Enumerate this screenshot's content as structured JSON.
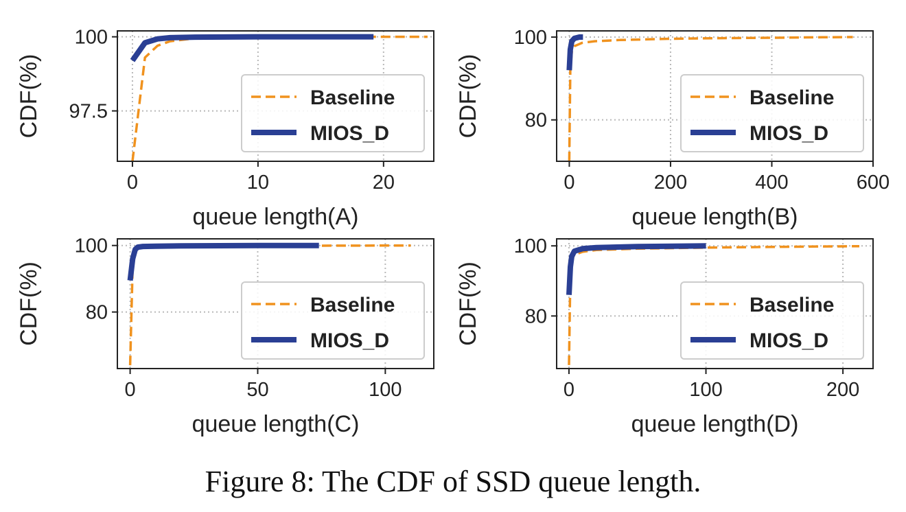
{
  "caption": "Figure 8: The CDF of SSD queue length.",
  "colors": {
    "baseline": "#f0921e",
    "mios_d": "#2a3f94",
    "grid": "#b8b8b8",
    "axis": "#222222"
  },
  "chart_data": [
    {
      "type": "line",
      "xlabel": "queue length(A)",
      "ylabel": "CDF(%)",
      "xlim": [
        -1.2,
        24
      ],
      "ylim": [
        95.8,
        100.2
      ],
      "xticks": [
        0,
        10,
        20
      ],
      "yticks": [
        97.5,
        100
      ],
      "ytick_labels": [
        "97.5",
        "100"
      ],
      "grid": true,
      "legend": "lower-right",
      "series": [
        {
          "name": "Baseline",
          "style": "dashed",
          "x": [
            0,
            1,
            2,
            3,
            5,
            10,
            15,
            20,
            23.5
          ],
          "y": [
            95.8,
            99.3,
            99.7,
            99.85,
            99.95,
            99.99,
            100,
            100,
            100
          ]
        },
        {
          "name": "MIOS_D",
          "style": "solid",
          "x": [
            0,
            1,
            2,
            3,
            5,
            10,
            15,
            19.2
          ],
          "y": [
            99.2,
            99.8,
            99.93,
            99.97,
            99.99,
            100,
            100,
            100
          ]
        }
      ]
    },
    {
      "type": "line",
      "xlabel": "queue length(B)",
      "ylabel": "CDF(%)",
      "xlim": [
        -25,
        600
      ],
      "ylim": [
        70,
        101.5
      ],
      "xticks": [
        0,
        200,
        400,
        600
      ],
      "yticks": [
        80,
        100
      ],
      "ytick_labels": [
        "80",
        "100"
      ],
      "grid": true,
      "legend": "lower-right",
      "series": [
        {
          "name": "Baseline",
          "style": "dashed",
          "x": [
            0,
            2,
            5,
            10,
            25,
            50,
            100,
            200,
            300,
            400,
            500,
            560
          ],
          "y": [
            70,
            92,
            96.5,
            97.8,
            98.6,
            99,
            99.3,
            99.6,
            99.75,
            99.85,
            99.95,
            100
          ]
        },
        {
          "name": "MIOS_D",
          "style": "solid",
          "x": [
            0,
            2,
            5,
            10,
            20,
            27
          ],
          "y": [
            92,
            97,
            99,
            99.7,
            100,
            100
          ]
        }
      ]
    },
    {
      "type": "line",
      "xlabel": "queue length(C)",
      "ylabel": "CDF(%)",
      "xlim": [
        -5,
        119
      ],
      "ylim": [
        63,
        102
      ],
      "xticks": [
        0,
        50,
        100
      ],
      "yticks": [
        80,
        100
      ],
      "ytick_labels": [
        "80",
        "100"
      ],
      "grid": true,
      "legend": "lower-right",
      "series": [
        {
          "name": "Baseline",
          "style": "dashed",
          "x": [
            0,
            1,
            2,
            3,
            5,
            10,
            20,
            50,
            80,
            110
          ],
          "y": [
            64,
            94,
            98.5,
            99.2,
            99.5,
            99.7,
            99.8,
            99.9,
            99.95,
            100
          ]
        },
        {
          "name": "MIOS_D",
          "style": "solid",
          "x": [
            0,
            1,
            2,
            3,
            5,
            10,
            20,
            50,
            74
          ],
          "y": [
            89.5,
            96,
            98.8,
            99.5,
            99.7,
            99.8,
            99.9,
            99.98,
            100
          ]
        }
      ]
    },
    {
      "type": "line",
      "xlabel": "queue length(D)",
      "ylabel": "CDF(%)",
      "xlim": [
        -9,
        222
      ],
      "ylim": [
        65,
        102
      ],
      "xticks": [
        0,
        100,
        200
      ],
      "yticks": [
        80,
        100
      ],
      "ytick_labels": [
        "80",
        "100"
      ],
      "grid": true,
      "legend": "lower-right",
      "series": [
        {
          "name": "Baseline",
          "style": "dashed",
          "x": [
            0,
            1,
            2,
            4,
            10,
            20,
            50,
            100,
            150,
            212
          ],
          "y": [
            66,
            92,
            96,
            97.5,
            98.3,
            98.8,
            99.2,
            99.5,
            99.7,
            99.9
          ]
        },
        {
          "name": "MIOS_D",
          "style": "solid",
          "x": [
            0,
            1,
            2,
            4,
            10,
            20,
            50,
            100
          ],
          "y": [
            86,
            94,
            97,
            98.5,
            99.2,
            99.5,
            99.8,
            100
          ]
        }
      ]
    }
  ]
}
